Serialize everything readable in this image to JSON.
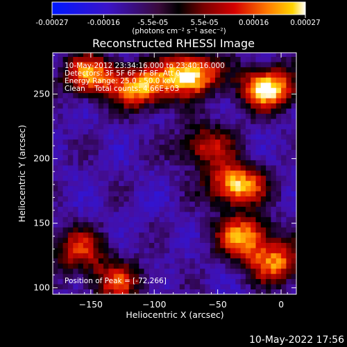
{
  "colorbar": {
    "tick_labels": [
      "-0.00027",
      "-0.00016",
      "-5.5e-05",
      "5.5e-05",
      "0.00016",
      "0.00027"
    ],
    "tick_values": [
      -0.00027,
      -0.00016,
      -5.5e-05,
      5.5e-05,
      0.00016,
      0.00027
    ],
    "range": [
      -0.00027,
      0.00027
    ],
    "unit_label": "(photons cm⁻² s⁻¹ asec⁻²)"
  },
  "chart_data": {
    "type": "heatmap",
    "title": "Reconstructed RHESSI Image",
    "xlabel": "Heliocentric X (arcsec)",
    "ylabel": "Heliocentric Y (arcsec)",
    "xlim": [
      -180,
      12
    ],
    "ylim": [
      95,
      282
    ],
    "xticks": [
      -150,
      -100,
      -50,
      0
    ],
    "yticks": [
      100,
      150,
      200,
      250
    ],
    "annotations": [
      "10-May-2012 23:34:16.000 to 23:40:16.000",
      "Detectors: 3F 5F 6F 7F 8F, Att 0",
      "Energy Range: 25.0 - 50.0 keV",
      "Clean    Total counts: 4.66E+03"
    ],
    "peak_label": "Position of Peak = [-72,266]",
    "peak": [
      -72,
      266
    ],
    "hot_regions": [
      {
        "x": -72,
        "y": 266,
        "level": 1.0
      },
      {
        "x": -10,
        "y": 255,
        "level": 0.95
      },
      {
        "x": -35,
        "y": 180,
        "level": 0.9
      },
      {
        "x": -30,
        "y": 140,
        "level": 0.75
      },
      {
        "x": -5,
        "y": 120,
        "level": 0.7
      },
      {
        "x": -150,
        "y": 265,
        "level": 0.75
      },
      {
        "x": -110,
        "y": 255,
        "level": 0.8
      },
      {
        "x": -160,
        "y": 130,
        "level": 0.55
      },
      {
        "x": -60,
        "y": 210,
        "level": 0.55
      },
      {
        "x": -130,
        "y": 105,
        "level": 0.55
      }
    ]
  },
  "footer": {
    "timestamp": "10-May-2022 17:56"
  }
}
